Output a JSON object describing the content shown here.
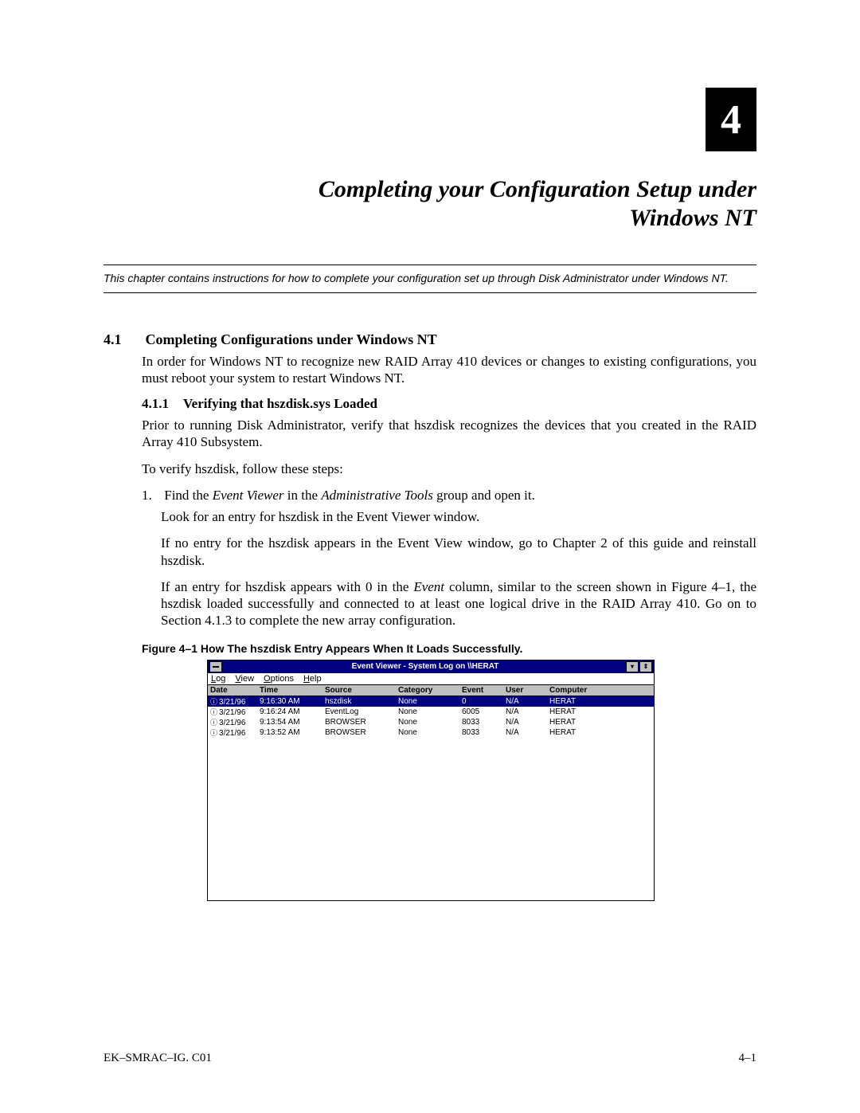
{
  "chapter": {
    "number": "4",
    "title_line1": "Completing your Configuration Setup under",
    "title_line2": "Windows NT",
    "abstract": "This chapter contains instructions for how  to complete your configuration set up through Disk Administrator under Windows NT."
  },
  "section41": {
    "num": "4.1",
    "title": "Completing Configurations under Windows NT",
    "p1": "In order for Windows NT to recognize new RAID Array 410 devices or changes to existing configurations, you must reboot your system to restart Windows NT."
  },
  "section411": {
    "num": "4.1.1",
    "title": "Verifying that hszdisk.sys Loaded",
    "p1": "Prior to running Disk Administrator, verify that hszdisk recognizes the devices that you created in the RAID Array 410 Subsystem.",
    "p2": "To verify hszdisk, follow these steps:",
    "li1_num": "1.",
    "li1_a": "Find the ",
    "li1_b": "Event Viewer",
    "li1_c": " in the ",
    "li1_d": "Administrative Tools",
    "li1_e": " group and open it.",
    "li1_sub": "Look for an entry for hszdisk in the Event Viewer window.",
    "p3": "If no entry for the hszdisk appears in the Event View window, go to Chapter 2 of this guide and reinstall hszdisk.",
    "p4_a": "If an entry for hszdisk appears with 0 in the ",
    "p4_b": "Event",
    "p4_c": " column, similar to the screen shown in Figure 4–1, the hszdisk loaded successfully and connected to at least one logical drive in the RAID Array 410. Go on to Section 4.1.3 to complete the new array configuration."
  },
  "figure": {
    "caption": "Figure 4–1  How The hszdisk Entry Appears When It Loads Successfully.",
    "window_title": "Event Viewer - System Log on \\\\HERAT",
    "menus": {
      "m1": "Log",
      "m2": "View",
      "m3": "Options",
      "m4": "Help"
    },
    "headers": {
      "date": "Date",
      "time": "Time",
      "source": "Source",
      "category": "Category",
      "event": "Event",
      "user": "User",
      "computer": "Computer"
    },
    "rows": [
      {
        "date": "3/21/96",
        "time": "9:16:30 AM",
        "source": "hszdisk",
        "category": "None",
        "event": "0",
        "user": "N/A",
        "computer": "HERAT",
        "selected": true
      },
      {
        "date": "3/21/96",
        "time": "9:16:24 AM",
        "source": "EventLog",
        "category": "None",
        "event": "6005",
        "user": "N/A",
        "computer": "HERAT",
        "selected": false
      },
      {
        "date": "3/21/96",
        "time": "9:13:54 AM",
        "source": "BROWSER",
        "category": "None",
        "event": "8033",
        "user": "N/A",
        "computer": "HERAT",
        "selected": false
      },
      {
        "date": "3/21/96",
        "time": "9:13:52 AM",
        "source": "BROWSER",
        "category": "None",
        "event": "8033",
        "user": "N/A",
        "computer": "HERAT",
        "selected": false
      }
    ]
  },
  "footer": {
    "left": "EK–SMRAC–IG. C01",
    "right": "4–1"
  },
  "colors": {
    "titlebar": "#000080",
    "win_bg": "#c0c0c0"
  }
}
